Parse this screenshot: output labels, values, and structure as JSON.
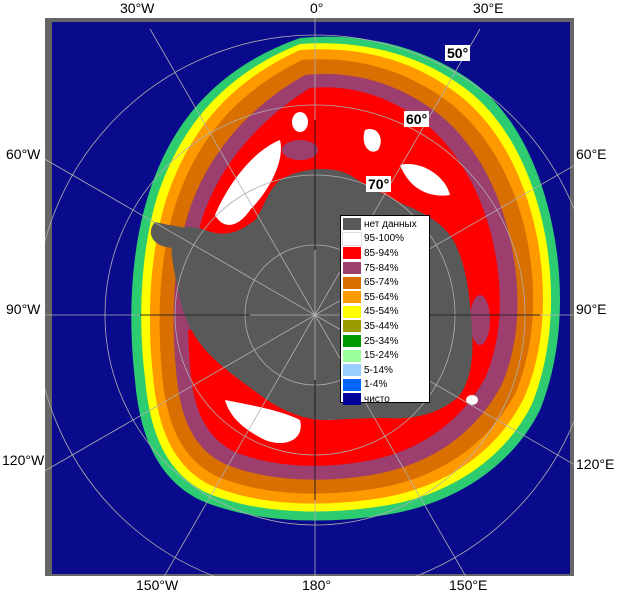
{
  "map": {
    "longitude_labels": {
      "top": [
        "30°W",
        "0°",
        "30°E"
      ],
      "bottom": [
        "150°W",
        "180°",
        "150°E"
      ],
      "left": [
        "60°W",
        "90°W",
        "120°W"
      ],
      "right": [
        "60°E",
        "90°E",
        "120°E"
      ]
    },
    "latitude_labels": [
      "50°",
      "60°",
      "70°"
    ]
  },
  "legend": {
    "items": [
      {
        "label": "нет данных",
        "color": "#595959"
      },
      {
        "label": "95-100%",
        "color": "#ffffff"
      },
      {
        "label": "85-94%",
        "color": "#ff0000"
      },
      {
        "label": "75-84%",
        "color": "#9c3f6e"
      },
      {
        "label": "65-74%",
        "color": "#d86f00"
      },
      {
        "label": "55-64%",
        "color": "#ff9900"
      },
      {
        "label": "45-54%",
        "color": "#ffff00"
      },
      {
        "label": "35-44%",
        "color": "#9c9c00"
      },
      {
        "label": "25-34%",
        "color": "#009900"
      },
      {
        "label": "15-24%",
        "color": "#99ff99"
      },
      {
        "label": "5-14%",
        "color": "#99ccff"
      },
      {
        "label": "1-4%",
        "color": "#0066ff"
      },
      {
        "label": "чисто",
        "color": "#000099"
      }
    ]
  },
  "colors": {
    "ocean": "#0a0a8c",
    "land": "#595959",
    "frame": "#666666",
    "grid": "#b0b0b0"
  }
}
